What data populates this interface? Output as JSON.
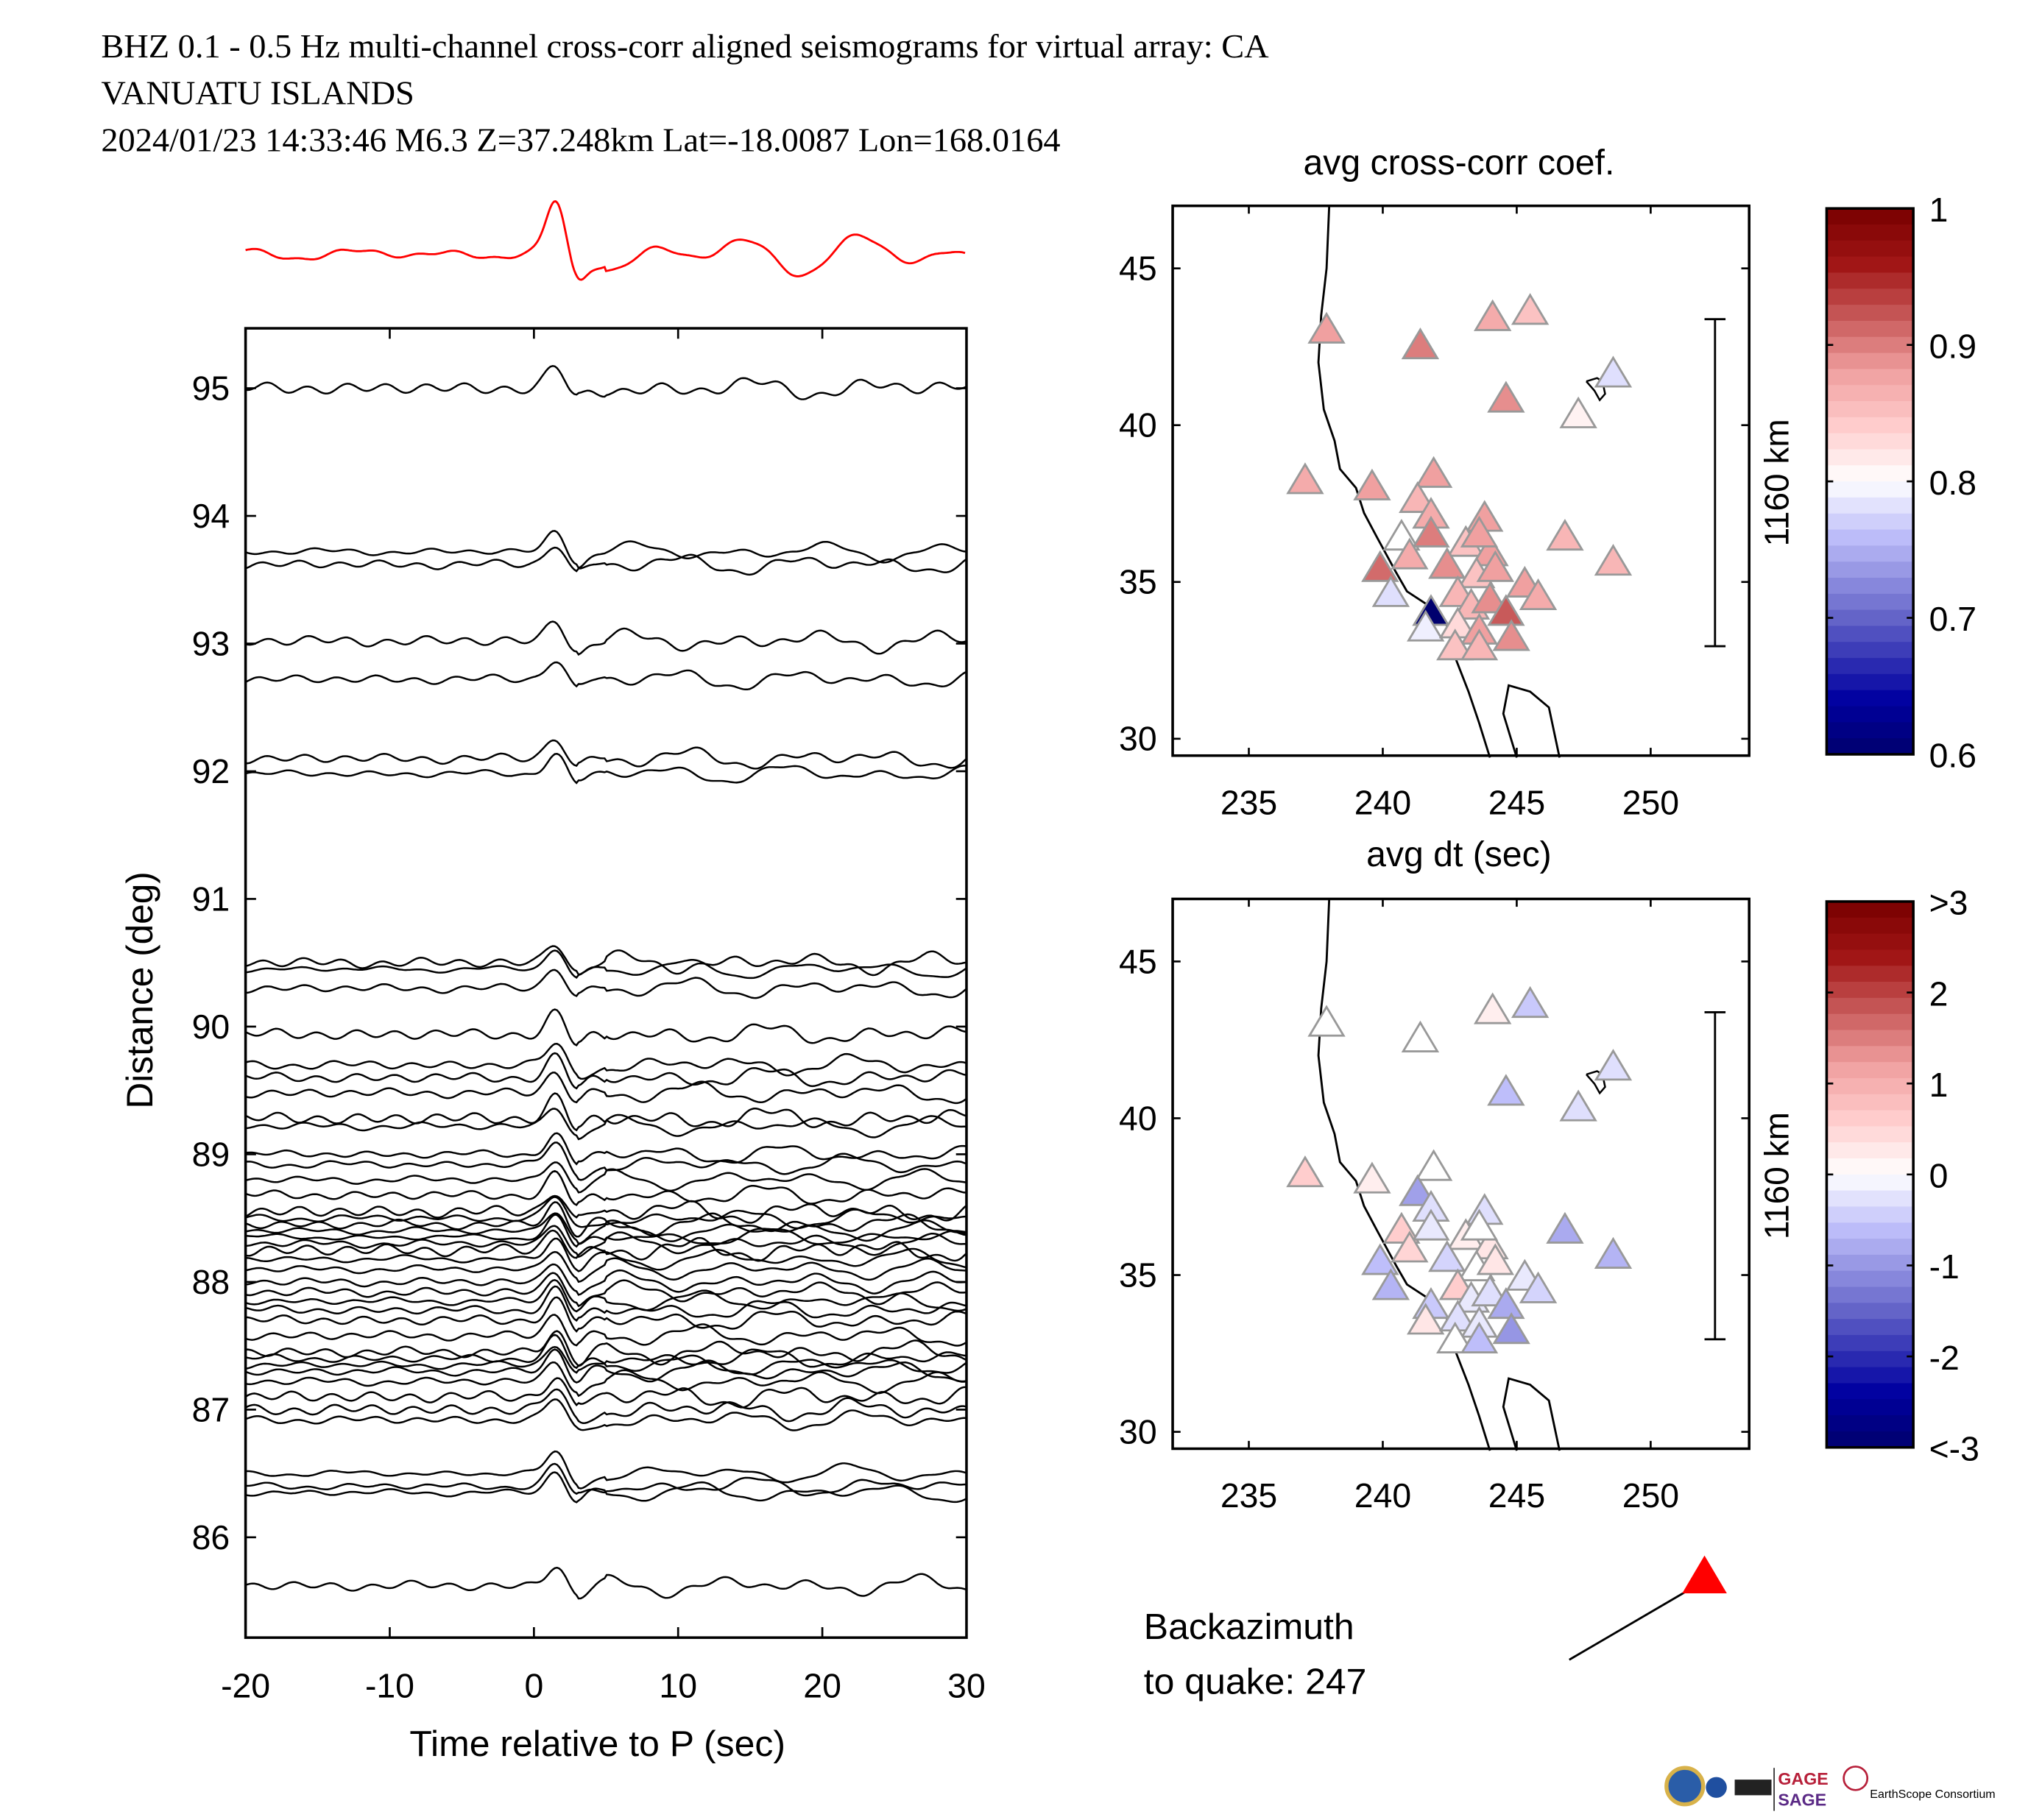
{
  "header": {
    "line1": "BHZ  0.1 - 0.5 Hz  multi-channel cross-corr aligned seismograms for virtual array: CA",
    "line2": "VANUATU ISLANDS",
    "line3": "2024/01/23  14:33:46  M6.3  Z=37.248km Lat=-18.0087 Lon=168.0164"
  },
  "colors": {
    "stack_trace": "#ff0000",
    "trace": "#000000",
    "station_edge": "#999999",
    "quake_marker": "#ff0000"
  },
  "backazimuth": {
    "label_line1": "Backazimuth",
    "label_line2": "to quake:  247",
    "value_deg": 247
  },
  "logos": [
    "NSF",
    "NASA",
    "USGS",
    "GAGE",
    "SAGE",
    "EarthScope Consortium"
  ],
  "chart_data": [
    {
      "type": "line",
      "name": "seismogram-section",
      "title": "",
      "xlabel": "Time relative to P (sec)",
      "ylabel": "Distance (deg)",
      "xlim": [
        -20,
        30
      ],
      "ylim": [
        85.3,
        95.6
      ],
      "xticks": [
        -20,
        -10,
        0,
        10,
        20,
        30
      ],
      "yticks": [
        86,
        87,
        88,
        89,
        90,
        91,
        92,
        93,
        94,
        95
      ],
      "stack_trace_label": "stacked beam (red)",
      "trace_distances_deg": [
        95.0,
        93.72,
        93.62,
        93.02,
        92.72,
        92.1,
        91.98,
        90.5,
        90.45,
        90.3,
        89.94,
        89.7,
        89.6,
        89.48,
        89.28,
        89.22,
        89.0,
        88.92,
        88.8,
        88.68,
        88.55,
        88.5,
        88.45,
        88.4,
        88.35,
        88.3,
        88.25,
        88.18,
        88.1,
        88.0,
        87.92,
        87.85,
        87.78,
        87.7,
        87.58,
        87.45,
        87.4,
        87.35,
        87.3,
        87.22,
        87.1,
        87.0,
        86.92,
        86.5,
        86.4,
        86.35,
        85.62
      ],
      "p_arrival_peak_sec": 1.5
    },
    {
      "type": "scatter",
      "name": "map-avg-cross-corr",
      "title": "avg cross-corr coef.",
      "xlim": [
        232.2,
        253.7
      ],
      "ylim": [
        29.4,
        47.0
      ],
      "xticks": [
        235,
        240,
        245,
        250
      ],
      "yticks": [
        30,
        35,
        40,
        45
      ],
      "scale_bar_label": "1160 km",
      "colorbar": {
        "min": 0.6,
        "max": 1.0,
        "ticks": [
          "1",
          "0.9",
          "0.8",
          "0.7",
          "0.6"
        ],
        "center": 0.8
      },
      "stations": [
        {
          "lon": 237.9,
          "lat": 43.0,
          "v": 0.88
        },
        {
          "lon": 241.4,
          "lat": 42.5,
          "v": 0.9
        },
        {
          "lon": 244.1,
          "lat": 43.4,
          "v": 0.87
        },
        {
          "lon": 245.5,
          "lat": 43.6,
          "v": 0.85
        },
        {
          "lon": 248.6,
          "lat": 41.6,
          "v": 0.78
        },
        {
          "lon": 244.6,
          "lat": 40.8,
          "v": 0.89
        },
        {
          "lon": 247.3,
          "lat": 40.3,
          "v": 0.81
        },
        {
          "lon": 237.1,
          "lat": 38.2,
          "v": 0.87
        },
        {
          "lon": 239.6,
          "lat": 38.0,
          "v": 0.88
        },
        {
          "lon": 241.9,
          "lat": 38.4,
          "v": 0.88
        },
        {
          "lon": 241.3,
          "lat": 37.6,
          "v": 0.86
        },
        {
          "lon": 241.8,
          "lat": 37.1,
          "v": 0.87
        },
        {
          "lon": 243.8,
          "lat": 37.0,
          "v": 0.88
        },
        {
          "lon": 246.8,
          "lat": 36.4,
          "v": 0.86
        },
        {
          "lon": 248.6,
          "lat": 35.6,
          "v": 0.86
        },
        {
          "lon": 240.7,
          "lat": 36.4,
          "v": 0.8
        },
        {
          "lon": 241.8,
          "lat": 36.5,
          "v": 0.9
        },
        {
          "lon": 243.1,
          "lat": 36.2,
          "v": 0.85
        },
        {
          "lon": 244.0,
          "lat": 35.9,
          "v": 0.88
        },
        {
          "lon": 243.6,
          "lat": 36.5,
          "v": 0.88
        },
        {
          "lon": 239.9,
          "lat": 35.4,
          "v": 0.91
        },
        {
          "lon": 241.0,
          "lat": 35.8,
          "v": 0.87
        },
        {
          "lon": 242.4,
          "lat": 35.5,
          "v": 0.89
        },
        {
          "lon": 243.5,
          "lat": 35.2,
          "v": 0.85
        },
        {
          "lon": 244.2,
          "lat": 35.4,
          "v": 0.88
        },
        {
          "lon": 245.3,
          "lat": 34.9,
          "v": 0.88
        },
        {
          "lon": 245.8,
          "lat": 34.5,
          "v": 0.87
        },
        {
          "lon": 240.3,
          "lat": 34.6,
          "v": 0.78
        },
        {
          "lon": 241.8,
          "lat": 34.0,
          "v": 0.6
        },
        {
          "lon": 242.8,
          "lat": 34.6,
          "v": 0.86
        },
        {
          "lon": 243.3,
          "lat": 34.2,
          "v": 0.86
        },
        {
          "lon": 244.0,
          "lat": 34.4,
          "v": 0.89
        },
        {
          "lon": 244.6,
          "lat": 34.0,
          "v": 0.92
        },
        {
          "lon": 241.6,
          "lat": 33.5,
          "v": 0.79
        },
        {
          "lon": 242.8,
          "lat": 33.6,
          "v": 0.83
        },
        {
          "lon": 243.6,
          "lat": 33.4,
          "v": 0.88
        },
        {
          "lon": 244.8,
          "lat": 33.2,
          "v": 0.89
        },
        {
          "lon": 242.7,
          "lat": 32.9,
          "v": 0.85
        },
        {
          "lon": 243.6,
          "lat": 32.9,
          "v": 0.86
        }
      ]
    },
    {
      "type": "scatter",
      "name": "map-avg-dt",
      "title": "avg dt (sec)",
      "xlim": [
        232.2,
        253.7
      ],
      "ylim": [
        29.4,
        47.0
      ],
      "xticks": [
        235,
        240,
        245,
        250
      ],
      "yticks": [
        30,
        35,
        40,
        45
      ],
      "scale_bar_label": "1160 km",
      "colorbar": {
        "min": -3,
        "max": 3,
        "ticks": [
          ">3",
          "2",
          "1",
          "0",
          "-1",
          "-2",
          "<-3"
        ],
        "center": 0
      },
      "stations": [
        {
          "lon": 237.9,
          "lat": 43.0,
          "v": 0.0
        },
        {
          "lon": 241.4,
          "lat": 42.5,
          "v": 0.0
        },
        {
          "lon": 244.1,
          "lat": 43.4,
          "v": 0.2
        },
        {
          "lon": 245.5,
          "lat": 43.6,
          "v": -0.5
        },
        {
          "lon": 248.6,
          "lat": 41.6,
          "v": -0.3
        },
        {
          "lon": 244.6,
          "lat": 40.8,
          "v": -0.6
        },
        {
          "lon": 247.3,
          "lat": 40.3,
          "v": -0.3
        },
        {
          "lon": 237.1,
          "lat": 38.2,
          "v": 0.6
        },
        {
          "lon": 239.6,
          "lat": 38.0,
          "v": 0.2
        },
        {
          "lon": 241.9,
          "lat": 38.4,
          "v": 0.0
        },
        {
          "lon": 241.3,
          "lat": 37.6,
          "v": -0.9
        },
        {
          "lon": 241.8,
          "lat": 37.1,
          "v": -0.3
        },
        {
          "lon": 243.8,
          "lat": 37.0,
          "v": -0.3
        },
        {
          "lon": 246.8,
          "lat": 36.4,
          "v": -0.8
        },
        {
          "lon": 248.6,
          "lat": 35.6,
          "v": -0.7
        },
        {
          "lon": 240.7,
          "lat": 36.4,
          "v": 0.6
        },
        {
          "lon": 241.8,
          "lat": 36.5,
          "v": -0.2
        },
        {
          "lon": 243.1,
          "lat": 36.2,
          "v": 0.2
        },
        {
          "lon": 244.0,
          "lat": 35.9,
          "v": 0.3
        },
        {
          "lon": 243.6,
          "lat": 36.5,
          "v": 0.0
        },
        {
          "lon": 239.9,
          "lat": 35.4,
          "v": -0.6
        },
        {
          "lon": 241.0,
          "lat": 35.8,
          "v": 0.5
        },
        {
          "lon": 242.4,
          "lat": 35.5,
          "v": -0.4
        },
        {
          "lon": 243.5,
          "lat": 35.2,
          "v": 0.0
        },
        {
          "lon": 244.2,
          "lat": 35.4,
          "v": 0.3
        },
        {
          "lon": 245.3,
          "lat": 34.9,
          "v": -0.2
        },
        {
          "lon": 245.8,
          "lat": 34.5,
          "v": -0.4
        },
        {
          "lon": 240.3,
          "lat": 34.6,
          "v": -0.7
        },
        {
          "lon": 241.8,
          "lat": 34.0,
          "v": -0.5
        },
        {
          "lon": 242.8,
          "lat": 34.6,
          "v": 0.6
        },
        {
          "lon": 243.3,
          "lat": 34.2,
          "v": -0.2
        },
        {
          "lon": 244.0,
          "lat": 34.4,
          "v": -0.3
        },
        {
          "lon": 244.6,
          "lat": 34.0,
          "v": -0.8
        },
        {
          "lon": 241.6,
          "lat": 33.5,
          "v": 0.3
        },
        {
          "lon": 242.8,
          "lat": 33.6,
          "v": -0.3
        },
        {
          "lon": 243.6,
          "lat": 33.4,
          "v": -0.2
        },
        {
          "lon": 244.8,
          "lat": 33.2,
          "v": -1.0
        },
        {
          "lon": 242.7,
          "lat": 32.9,
          "v": 0.0
        },
        {
          "lon": 243.6,
          "lat": 32.9,
          "v": -0.6
        }
      ]
    }
  ]
}
